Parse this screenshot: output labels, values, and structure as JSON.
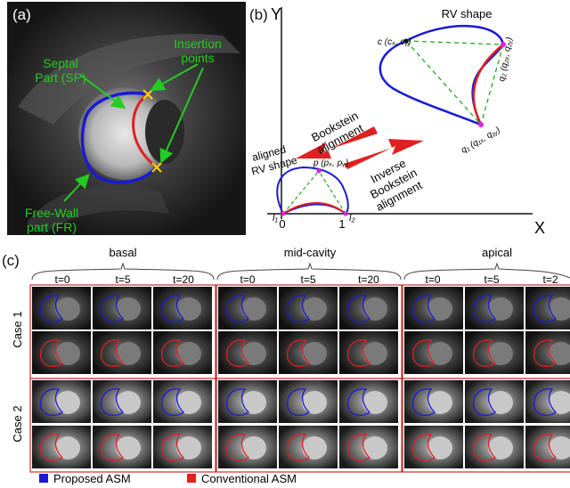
{
  "panel_a": {
    "label": "(a)",
    "septal_line1": "Septal",
    "septal_line2": "Part (SP)",
    "insertion_line1": "Insertion",
    "insertion_line2": "points",
    "freewall_line1": "Free-Wall",
    "freewall_line2": "part (FR)"
  },
  "panel_b": {
    "label": "(b)",
    "y_axis": "Y",
    "x_axis": "X",
    "rv_shape": "RV shape",
    "aligned_line1": "aligned",
    "aligned_line2": "RV shape",
    "bookstein_line1": "Bookstein",
    "bookstein_line2": "alignment",
    "inverse_line1": "Inverse",
    "inverse_line2": "Bookstein",
    "inverse_line3": "alignment",
    "pt_c": "c (cₓ, cᵧ)",
    "pt_q2": "q₂ (q₂ₓ, q₂ᵧ)",
    "pt_q1": "q₁ (q₁ₓ, q₁ᵧ)",
    "pt_p": "p (pₓ, pᵧ)",
    "tick0": "0",
    "tick1": "1",
    "l1": "l₁",
    "l2": "l₂"
  },
  "panel_c": {
    "label": "(c)",
    "groups": [
      "basal",
      "mid-cavity",
      "apical"
    ],
    "time_labels": [
      "t=0",
      "t=5",
      "t=20",
      "t=0",
      "t=5",
      "t=20",
      "t=0",
      "t=5",
      "t=2"
    ],
    "cases": [
      "Case 1",
      "Case 2"
    ]
  },
  "legend": {
    "proposed": "Proposed ASM",
    "conventional": "Conventional ASM",
    "proposed_color": "#1a1ad6",
    "conventional_color": "#e02020"
  },
  "colors": {
    "blue_contour": "#1a1ad6",
    "red_contour": "#e02020",
    "green_annot": "#22cc22",
    "yellow_marker": "#ffd400",
    "magenta_marker": "#e020e0",
    "group_border": "#cc2a2a"
  }
}
